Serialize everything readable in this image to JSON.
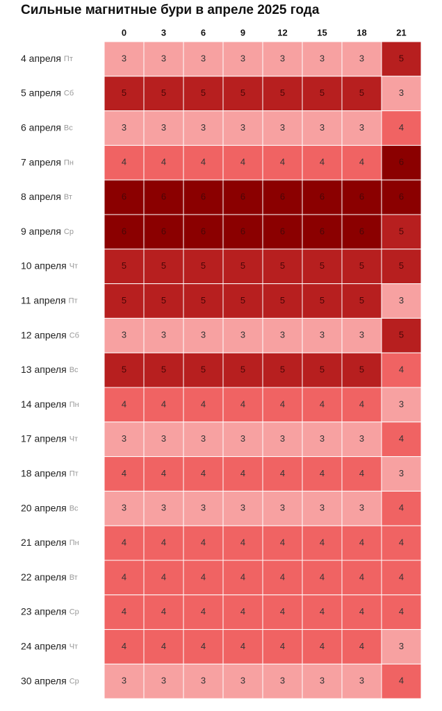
{
  "chart_data": {
    "type": "heatmap",
    "title": "Сильные магнитные бури в апреле 2025 года",
    "x_categories": [
      0,
      3,
      6,
      9,
      12,
      15,
      18,
      21
    ],
    "y_categories": [
      "4 апреля",
      "5 апреля",
      "6 апреля",
      "7 апреля",
      "8 апреля",
      "9 апреля",
      "10 апреля",
      "11 апреля",
      "12 апреля",
      "13 апреля",
      "14 апреля",
      "17 апреля",
      "18 апреля",
      "20 апреля",
      "21 апреля",
      "22 апреля",
      "23 апреля",
      "24 апреля",
      "30 апреля"
    ],
    "y_days": [
      "Пт",
      "Сб",
      "Вс",
      "Пн",
      "Вт",
      "Ср",
      "Чт",
      "Пт",
      "Сб",
      "Вс",
      "Пн",
      "Чт",
      "Пт",
      "Вс",
      "Пн",
      "Вт",
      "Ср",
      "Чт",
      "Ср"
    ],
    "values": [
      [
        3,
        3,
        3,
        3,
        3,
        3,
        3,
        5
      ],
      [
        5,
        5,
        5,
        5,
        5,
        5,
        5,
        3
      ],
      [
        3,
        3,
        3,
        3,
        3,
        3,
        3,
        4
      ],
      [
        4,
        4,
        4,
        4,
        4,
        4,
        4,
        6
      ],
      [
        6,
        6,
        6,
        6,
        6,
        6,
        6,
        6
      ],
      [
        6,
        6,
        6,
        6,
        6,
        6,
        6,
        5
      ],
      [
        5,
        5,
        5,
        5,
        5,
        5,
        5,
        5
      ],
      [
        5,
        5,
        5,
        5,
        5,
        5,
        5,
        3
      ],
      [
        3,
        3,
        3,
        3,
        3,
        3,
        3,
        5
      ],
      [
        5,
        5,
        5,
        5,
        5,
        5,
        5,
        4
      ],
      [
        4,
        4,
        4,
        4,
        4,
        4,
        4,
        3
      ],
      [
        3,
        3,
        3,
        3,
        3,
        3,
        3,
        4
      ],
      [
        4,
        4,
        4,
        4,
        4,
        4,
        4,
        3
      ],
      [
        3,
        3,
        3,
        3,
        3,
        3,
        3,
        4
      ],
      [
        4,
        4,
        4,
        4,
        4,
        4,
        4,
        4
      ],
      [
        4,
        4,
        4,
        4,
        4,
        4,
        4,
        4
      ],
      [
        4,
        4,
        4,
        4,
        4,
        4,
        4,
        4
      ],
      [
        4,
        4,
        4,
        4,
        4,
        4,
        4,
        3
      ],
      [
        3,
        3,
        3,
        3,
        3,
        3,
        3,
        4
      ]
    ],
    "color_scale": [
      {
        "value": 3,
        "color": "#f7a1a1"
      },
      {
        "value": 4,
        "color": "#f06363"
      },
      {
        "value": 5,
        "color": "#b71f1f"
      },
      {
        "value": 6,
        "color": "#8b0000"
      }
    ]
  }
}
